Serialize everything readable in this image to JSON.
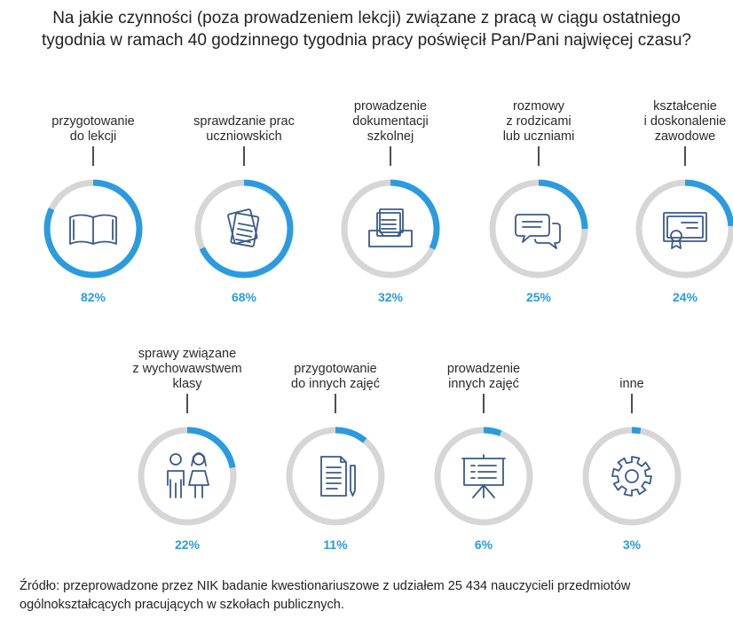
{
  "title_lines": [
    "Na jakie czynności (poza prowadzeniem lekcji) związane z pracą w ciągu ostatniego",
    "tygodnia w ramach 40 godzinnego tygodnia pracy poświęcił Pan/Pani najwięcej czasu?"
  ],
  "source_lines": [
    "Źródło: przeprowadzone przez NIK badanie kwestionariuszowe z  udziałem 25  434 nauczycieli przedmiotów",
    "ogólnokształcących pracujących w szkołach publicznych."
  ],
  "colors": {
    "accent": "#2b9be0",
    "track": "#d6d6d6",
    "icon": "#3a5a8c"
  },
  "chart_data": {
    "type": "donut",
    "unit": "%",
    "max": 100,
    "items": [
      {
        "label_lines": [
          "przygotowanie",
          "do lekcji"
        ],
        "value": 82,
        "display": "82%",
        "icon": "book-icon"
      },
      {
        "label_lines": [
          "sprawdzanie prac",
          "uczniowskich"
        ],
        "value": 68,
        "display": "68%",
        "icon": "papers-icon"
      },
      {
        "label_lines": [
          "prowadzenie",
          "dokumentacji",
          "szkolnej"
        ],
        "value": 32,
        "display": "32%",
        "icon": "document-tray-icon"
      },
      {
        "label_lines": [
          "rozmowy",
          "z rodzicami",
          "lub uczniami"
        ],
        "value": 25,
        "display": "25%",
        "icon": "chat-bubbles-icon"
      },
      {
        "label_lines": [
          "kształcenie",
          "i doskonalenie",
          "zawodowe"
        ],
        "value": 24,
        "display": "24%",
        "icon": "certificate-icon"
      },
      {
        "label_lines": [
          "sprawy związane",
          "z wychowawstwem",
          "klasy"
        ],
        "value": 22,
        "display": "22%",
        "icon": "students-icon"
      },
      {
        "label_lines": [
          "przygotowanie",
          "do innych zajęć"
        ],
        "value": 11,
        "display": "11%",
        "icon": "document-pen-icon"
      },
      {
        "label_lines": [
          "prowadzenie",
          "innych zajęć"
        ],
        "value": 6,
        "display": "6%",
        "icon": "presentation-board-icon"
      },
      {
        "label_lines": [
          "inne"
        ],
        "value": 3,
        "display": "3%",
        "icon": "gear-icon"
      }
    ]
  }
}
